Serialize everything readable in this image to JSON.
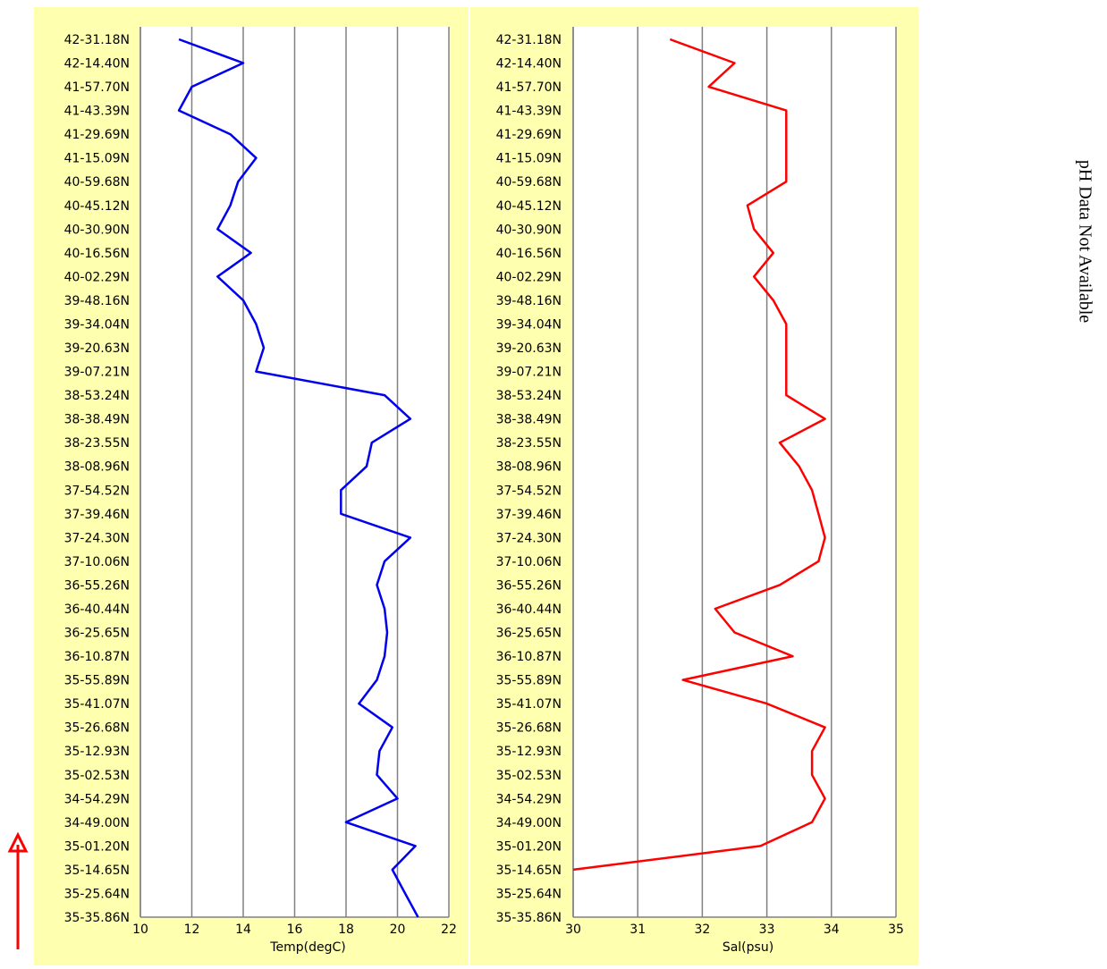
{
  "chart_data": [
    {
      "type": "line",
      "orientation": "horizontal",
      "x_label": "Temp(degC)",
      "categories": [
        "42-31.18N",
        "42-14.40N",
        "41-57.70N",
        "41-43.39N",
        "41-29.69N",
        "41-15.09N",
        "40-59.68N",
        "40-45.12N",
        "40-30.90N",
        "40-16.56N",
        "40-02.29N",
        "39-48.16N",
        "39-34.04N",
        "39-20.63N",
        "39-07.21N",
        "38-53.24N",
        "38-38.49N",
        "38-23.55N",
        "38-08.96N",
        "37-54.52N",
        "37-39.46N",
        "37-24.30N",
        "37-10.06N",
        "36-55.26N",
        "36-40.44N",
        "36-25.65N",
        "36-10.87N",
        "35-55.89N",
        "35-41.07N",
        "35-26.68N",
        "35-12.93N",
        "35-02.53N",
        "34-54.29N",
        "34-49.00N",
        "35-01.20N",
        "35-14.65N",
        "35-25.64N",
        "35-35.86N"
      ],
      "series": [
        {
          "color": "#0000ee",
          "values": [
            11.5,
            14,
            12,
            11.5,
            13.5,
            14.5,
            13.8,
            13.5,
            13,
            14.3,
            13,
            14,
            14.5,
            14.8,
            14.5,
            19.5,
            20.5,
            19,
            18.8,
            17.8,
            17.8,
            20.5,
            19.5,
            19.2,
            19.5,
            19.6,
            19.5,
            19.2,
            18.5,
            19.8,
            19.3,
            19.2,
            20,
            18,
            20.7,
            19.8,
            20.3,
            20.8
          ]
        }
      ],
      "xlim": [
        10,
        22
      ],
      "xticks": [
        10,
        12,
        14,
        16,
        18,
        20,
        22
      ],
      "grid": true
    },
    {
      "type": "line",
      "orientation": "horizontal",
      "x_label": "Sal(psu)",
      "categories": [
        "42-31.18N",
        "42-14.40N",
        "41-57.70N",
        "41-43.39N",
        "41-29.69N",
        "41-15.09N",
        "40-59.68N",
        "40-45.12N",
        "40-30.90N",
        "40-16.56N",
        "40-02.29N",
        "39-48.16N",
        "39-34.04N",
        "39-20.63N",
        "39-07.21N",
        "38-53.24N",
        "38-38.49N",
        "38-23.55N",
        "38-08.96N",
        "37-54.52N",
        "37-39.46N",
        "37-24.30N",
        "37-10.06N",
        "36-55.26N",
        "36-40.44N",
        "36-25.65N",
        "36-10.87N",
        "35-55.89N",
        "35-41.07N",
        "35-26.68N",
        "35-12.93N",
        "35-02.53N",
        "34-54.29N",
        "34-49.00N",
        "35-01.20N",
        "35-14.65N",
        "35-25.64N",
        "35-35.86N"
      ],
      "series": [
        {
          "color": "#ff0000",
          "values": [
            31.5,
            32.5,
            32.1,
            33.3,
            33.3,
            33.3,
            33.3,
            32.7,
            32.8,
            33.1,
            32.8,
            33.1,
            33.3,
            33.3,
            33.3,
            33.3,
            33.9,
            33.2,
            33.5,
            33.7,
            33.8,
            33.9,
            33.8,
            33.2,
            32.2,
            32.5,
            33.4,
            31.7,
            33,
            33.9,
            33.7,
            33.7,
            33.9,
            33.7,
            32.9,
            30,
            null,
            null
          ]
        }
      ],
      "xlim": [
        30,
        35
      ],
      "xticks": [
        30,
        31,
        32,
        33,
        34,
        35
      ],
      "grid": true
    }
  ],
  "side_note": "pH Data Not Available"
}
